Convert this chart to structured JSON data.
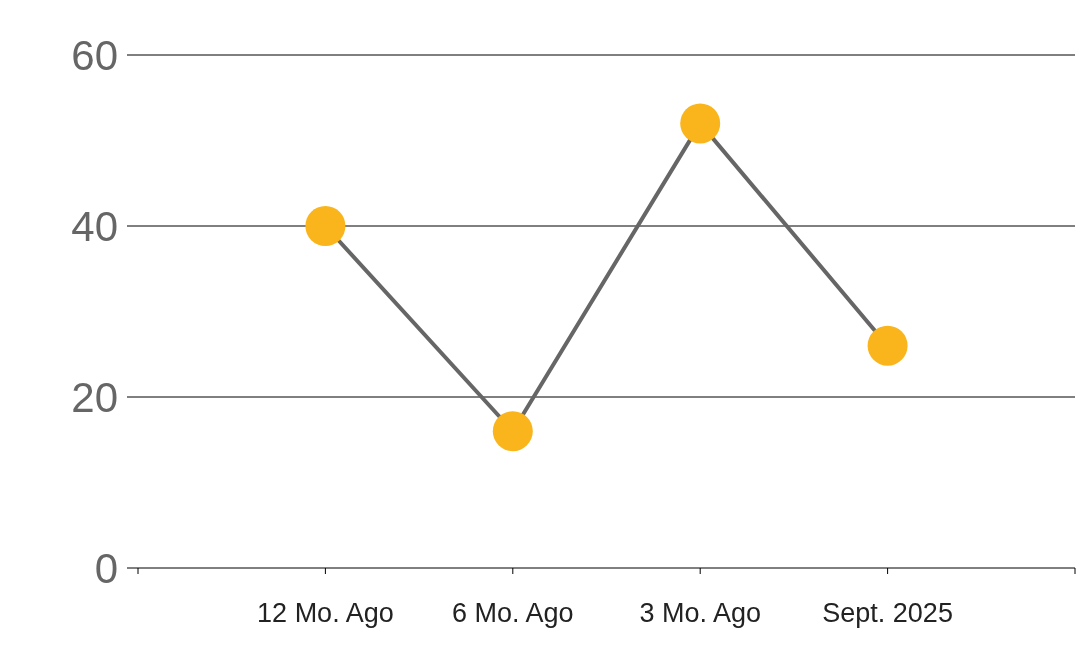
{
  "chart_data": {
    "type": "line",
    "categories": [
      "12 Mo. Ago",
      "6 Mo. Ago",
      "3 Mo. Ago",
      "Sept. 2025"
    ],
    "series": [
      {
        "color": "#666666",
        "colors": [
          "#f9b51b",
          "#f9b51b",
          "#f9b51b",
          "#f9b51b"
        ],
        "values": [
          40,
          16,
          52,
          26
        ]
      }
    ],
    "ylim": [
      0,
      60
    ],
    "yticks": [
      0,
      20,
      40,
      60
    ],
    "grid": "y",
    "marker": "circle",
    "line_style": "solid"
  }
}
